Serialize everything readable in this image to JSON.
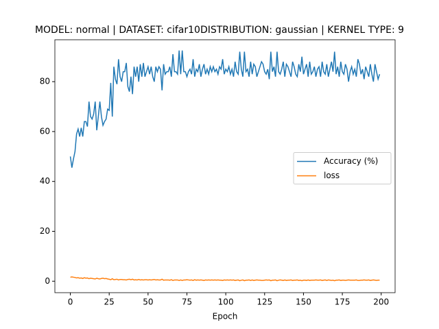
{
  "chart_data": {
    "type": "line",
    "title": "MODEL: normal | DATASET: cifar10DISTRIBUTION: gaussian | KERNEL TYPE: 9",
    "x_label": "Epoch",
    "x": [
      0,
      1,
      2,
      3,
      4,
      5,
      6,
      7,
      8,
      9,
      10,
      11,
      12,
      13,
      14,
      15,
      16,
      17,
      18,
      19,
      20,
      21,
      22,
      23,
      24,
      25,
      26,
      27,
      28,
      29,
      30,
      31,
      32,
      33,
      34,
      35,
      36,
      37,
      38,
      39,
      40,
      41,
      42,
      43,
      44,
      45,
      46,
      47,
      48,
      49,
      50,
      51,
      52,
      53,
      54,
      55,
      56,
      57,
      58,
      59,
      60,
      61,
      62,
      63,
      64,
      65,
      66,
      67,
      68,
      69,
      70,
      71,
      72,
      73,
      74,
      75,
      76,
      77,
      78,
      79,
      80,
      81,
      82,
      83,
      84,
      85,
      86,
      87,
      88,
      89,
      90,
      91,
      92,
      93,
      94,
      95,
      96,
      97,
      98,
      99,
      100,
      101,
      102,
      103,
      104,
      105,
      106,
      107,
      108,
      109,
      110,
      111,
      112,
      113,
      114,
      115,
      116,
      117,
      118,
      119,
      120,
      121,
      122,
      123,
      124,
      125,
      126,
      127,
      128,
      129,
      130,
      131,
      132,
      133,
      134,
      135,
      136,
      137,
      138,
      139,
      140,
      141,
      142,
      143,
      144,
      145,
      146,
      147,
      148,
      149,
      150,
      151,
      152,
      153,
      154,
      155,
      156,
      157,
      158,
      159,
      160,
      161,
      162,
      163,
      164,
      165,
      166,
      167,
      168,
      169,
      170,
      171,
      172,
      173,
      174,
      175,
      176,
      177,
      178,
      179,
      180,
      181,
      182,
      183,
      184,
      185,
      186,
      187,
      188,
      189,
      190,
      191,
      192,
      193,
      194,
      195,
      196,
      197,
      198,
      199
    ],
    "series": [
      {
        "name": "Accuracy (%)",
        "color": "#1f77b4",
        "values": [
          50,
          45.5,
          49,
          52,
          59,
          61,
          58,
          61.5,
          58,
          64,
          64,
          62,
          72,
          66,
          65,
          67,
          72,
          60.5,
          66,
          72,
          66,
          62.5,
          64,
          65,
          69,
          68.5,
          79.5,
          66,
          86,
          81,
          79,
          89,
          82,
          80,
          84,
          84,
          87.5,
          78,
          76,
          82,
          75,
          86,
          82,
          86,
          80,
          87,
          82,
          87.5,
          82,
          84,
          86,
          83,
          86,
          82,
          80,
          86,
          84,
          86,
          85,
          76.5,
          87,
          83,
          84,
          84,
          86,
          82,
          91,
          84,
          84,
          83,
          92.5,
          83,
          92.5,
          84,
          84,
          82,
          84,
          85,
          83,
          89,
          82,
          85,
          84,
          87,
          82,
          85,
          87,
          83,
          85,
          83,
          86,
          84,
          86,
          84,
          85,
          83,
          86,
          85,
          89,
          83,
          85,
          84,
          86,
          83,
          85,
          82,
          88,
          84,
          83,
          92,
          85,
          82,
          92,
          84,
          85,
          82,
          88,
          83,
          87,
          86,
          82,
          84,
          86,
          88,
          87,
          84,
          83,
          85,
          81,
          92,
          84,
          86,
          82,
          92,
          84,
          83,
          85,
          88,
          82,
          87,
          86,
          84,
          82,
          88,
          86,
          83,
          82,
          87,
          84,
          90,
          83,
          85,
          87,
          82,
          88,
          83,
          84,
          86,
          82,
          85,
          86,
          82,
          88,
          84,
          83,
          87,
          82,
          85,
          88,
          84,
          92,
          83,
          86,
          82,
          88,
          84,
          83,
          87,
          85,
          80,
          84,
          86,
          83,
          85,
          82,
          89,
          87,
          83,
          85,
          81,
          86,
          84,
          82,
          87,
          83,
          80,
          87,
          84,
          81,
          83
        ]
      },
      {
        "name": "loss",
        "color": "#ff7f0e",
        "values": [
          1.6,
          1.7,
          1.6,
          1.5,
          1.3,
          1.4,
          1.2,
          1.3,
          1.1,
          1.4,
          1.2,
          1.3,
          1.0,
          1.2,
          1.1,
          1.0,
          0.9,
          1.2,
          1.0,
          0.9,
          1.1,
          1.2,
          1.0,
          1.1,
          0.9,
          0.8,
          0.6,
          1.0,
          0.6,
          0.7,
          0.8,
          0.5,
          0.7,
          0.7,
          0.6,
          0.6,
          0.5,
          0.7,
          0.8,
          0.6,
          0.8,
          0.5,
          0.6,
          0.5,
          0.7,
          0.5,
          0.6,
          0.5,
          0.6,
          0.6,
          0.5,
          0.6,
          0.5,
          0.6,
          0.7,
          0.5,
          0.6,
          0.5,
          0.5,
          0.8,
          0.4,
          0.5,
          0.5,
          0.5,
          0.4,
          0.6,
          0.3,
          0.5,
          0.5,
          0.5,
          0.3,
          0.5,
          0.3,
          0.5,
          0.5,
          0.6,
          0.5,
          0.4,
          0.5,
          0.3,
          0.6,
          0.4,
          0.5,
          0.4,
          0.5,
          0.4,
          0.3,
          0.5,
          0.4,
          0.5,
          0.4,
          0.5,
          0.4,
          0.5,
          0.4,
          0.5,
          0.4,
          0.4,
          0.3,
          0.5,
          0.4,
          0.5,
          0.4,
          0.5,
          0.4,
          0.5,
          0.3,
          0.4,
          0.5,
          0.2,
          0.4,
          0.5,
          0.2,
          0.4,
          0.4,
          0.5,
          0.3,
          0.5,
          0.3,
          0.4,
          0.5,
          0.4,
          0.4,
          0.3,
          0.3,
          0.4,
          0.5,
          0.4,
          0.5,
          0.2,
          0.4,
          0.4,
          0.5,
          0.2,
          0.4,
          0.5,
          0.4,
          0.3,
          0.5,
          0.3,
          0.4,
          0.4,
          0.5,
          0.3,
          0.4,
          0.4,
          0.5,
          0.3,
          0.4,
          0.2,
          0.4,
          0.4,
          0.3,
          0.5,
          0.3,
          0.4,
          0.4,
          0.4,
          0.5,
          0.4,
          0.4,
          0.5,
          0.3,
          0.4,
          0.5,
          0.3,
          0.5,
          0.4,
          0.3,
          0.4,
          0.2,
          0.4,
          0.4,
          0.5,
          0.3,
          0.4,
          0.4,
          0.3,
          0.4,
          0.5,
          0.4,
          0.4,
          0.4,
          0.4,
          0.5,
          0.3,
          0.3,
          0.4,
          0.4,
          0.5,
          0.4,
          0.4,
          0.5,
          0.3,
          0.4,
          0.5,
          0.4,
          0.3,
          0.4,
          0.4
        ]
      }
    ],
    "xlim": [
      -9.95,
      208.95
    ],
    "ylim": [
      -4.6,
      96.8
    ],
    "xticks": [
      0,
      25,
      50,
      75,
      100,
      125,
      150,
      175,
      200
    ],
    "yticks": [
      0,
      20,
      40,
      60,
      80
    ],
    "grid": false,
    "legend": "center right"
  }
}
